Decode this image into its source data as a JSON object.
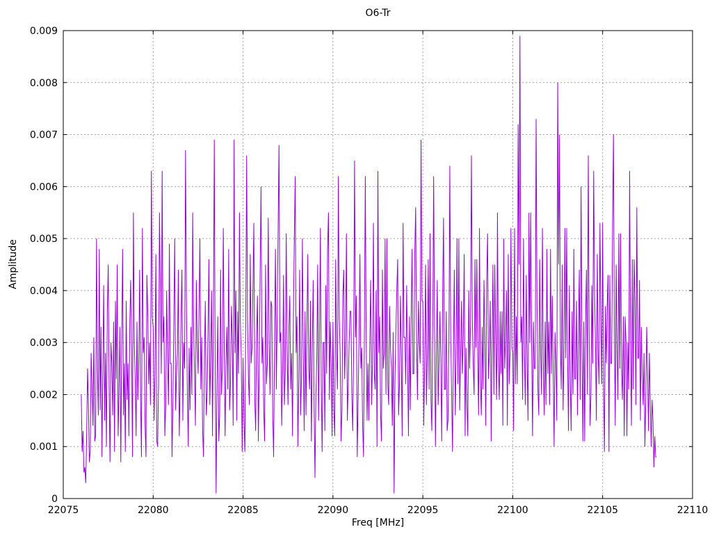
{
  "figure": {
    "background": "#ffffff"
  },
  "chart_data": {
    "type": "line",
    "title": "O6-Tr",
    "xlabel": "Freq [MHz]",
    "ylabel": "Amplitude",
    "xlim": [
      22075,
      22110
    ],
    "ylim": [
      0,
      0.009
    ],
    "x_ticks": [
      22075,
      22080,
      22085,
      22090,
      22095,
      22100,
      22105,
      22110
    ],
    "x_tick_labels": [
      "22075",
      "22080",
      "22085",
      "22090",
      "22095",
      "22100",
      "22105",
      "22110"
    ],
    "y_ticks": [
      0,
      0.001,
      0.002,
      0.003,
      0.004,
      0.005,
      0.006,
      0.007,
      0.008,
      0.009
    ],
    "y_tick_labels": [
      "0",
      "0.001",
      "0.002",
      "0.003",
      "0.004",
      "0.005",
      "0.006",
      "0.007",
      "0.008",
      "0.009"
    ],
    "grid": true,
    "legend": "none",
    "line_color": "#9400d3",
    "grid_color": "#9e9e9e",
    "axis_color": "#000000",
    "x_start": 22076.0,
    "x_step": 0.05,
    "value_scale": 0.0001,
    "samples": [
      20,
      9,
      13,
      5,
      6,
      3,
      12,
      25,
      18,
      7,
      9,
      28,
      22,
      14,
      31,
      11,
      12,
      50,
      25,
      16,
      48,
      17,
      33,
      8,
      24,
      41,
      15,
      28,
      10,
      36,
      45,
      21,
      7,
      30,
      26,
      16,
      34,
      9,
      38,
      23,
      45,
      12,
      21,
      33,
      7,
      30,
      48,
      16,
      26,
      9,
      38,
      19,
      26,
      12,
      34,
      42,
      28,
      8,
      55,
      30,
      23,
      12,
      34,
      19,
      27,
      44,
      19,
      8,
      52,
      28,
      31,
      14,
      8,
      43,
      36,
      22,
      30,
      18,
      63,
      35,
      33,
      15,
      24,
      47,
      11,
      10,
      22,
      55,
      40,
      24,
      63,
      30,
      35,
      12,
      18,
      40,
      27,
      18,
      49,
      26,
      26,
      8,
      19,
      34,
      50,
      17,
      24,
      28,
      44,
      12,
      21,
      35,
      44,
      15,
      30,
      25,
      67,
      38,
      21,
      10,
      29,
      17,
      33,
      20,
      55,
      33,
      24,
      14,
      42,
      30,
      24,
      36,
      50,
      21,
      31,
      13,
      8,
      27,
      38,
      16,
      20,
      32,
      46,
      18,
      27,
      40,
      12,
      35,
      69,
      25,
      1,
      22,
      35,
      11,
      16,
      44,
      20,
      25,
      52,
      30,
      12,
      26,
      33,
      21,
      48,
      17,
      22,
      37,
      30,
      14,
      69,
      28,
      40,
      15,
      36,
      24,
      55,
      34,
      27,
      9,
      27,
      15,
      9,
      35,
      66,
      34,
      23,
      18,
      47,
      26,
      29,
      41,
      53,
      19,
      13,
      31,
      39,
      11,
      25,
      44,
      60,
      26,
      31,
      17,
      11,
      45,
      22,
      26,
      54,
      30,
      20,
      38,
      37,
      16,
      8,
      29,
      48,
      21,
      35,
      52,
      68,
      30,
      32,
      14,
      24,
      43,
      18,
      25,
      51,
      29,
      18,
      33,
      39,
      21,
      28,
      12,
      35,
      50,
      62,
      28,
      35,
      10,
      23,
      44,
      16,
      23,
      50,
      28,
      13,
      36,
      16,
      33,
      47,
      25,
      21,
      38,
      11,
      29,
      42,
      18,
      4,
      20,
      27,
      45,
      15,
      31,
      52,
      22,
      9,
      30,
      30,
      13,
      41,
      24,
      48,
      55,
      19,
      34,
      26,
      12,
      34,
      17,
      12,
      46,
      28,
      21,
      62,
      35,
      28,
      11,
      17,
      39,
      44,
      23,
      31,
      51,
      15,
      22,
      30,
      36,
      36,
      20,
      13,
      29,
      65,
      31,
      39,
      8,
      19,
      31,
      47,
      25,
      29,
      14,
      8,
      33,
      62,
      30,
      15,
      26,
      15,
      30,
      42,
      18,
      26,
      53,
      24,
      21,
      40,
      10,
      63,
      28,
      35,
      16,
      11,
      44,
      25,
      28,
      50,
      20,
      50,
      22,
      18,
      37,
      29,
      25,
      14,
      32,
      1,
      23,
      32,
      40,
      46,
      16,
      22,
      39,
      27,
      12,
      53,
      31,
      31,
      22,
      41,
      27,
      12,
      35,
      17,
      35,
      48,
      24,
      24,
      47,
      56,
      30,
      19,
      38,
      30,
      26,
      69,
      38,
      38,
      14,
      26,
      45,
      18,
      28,
      46,
      21,
      51,
      19,
      13,
      33,
      62,
      33,
      10,
      27,
      42,
      18,
      26,
      36,
      26,
      11,
      39,
      54,
      21,
      21,
      36,
      13,
      15,
      30,
      64,
      31,
      20,
      9,
      28,
      44,
      16,
      27,
      50,
      22,
      50,
      17,
      28,
      38,
      24,
      31,
      47,
      12,
      29,
      18,
      12,
      40,
      25,
      33,
      66,
      35,
      26,
      20,
      46,
      29,
      46,
      28,
      16,
      52,
      23,
      16,
      33,
      21,
      42,
      30,
      14,
      42,
      51,
      23,
      28,
      38,
      11,
      30,
      45,
      20,
      45,
      30,
      19,
      55,
      26,
      19,
      36,
      24,
      36,
      14,
      50,
      25,
      31,
      40,
      14,
      47,
      22,
      28,
      52,
      29,
      28,
      13,
      52,
      22,
      35,
      22,
      72,
      45,
      89,
      30,
      35,
      19,
      50,
      28,
      18,
      43,
      26,
      15,
      55,
      30,
      55,
      30,
      12,
      34,
      25,
      25,
      73,
      38,
      21,
      16,
      46,
      28,
      20,
      52,
      26,
      16,
      34,
      18,
      48,
      24,
      34,
      18,
      48,
      24,
      39,
      24,
      10,
      32,
      26,
      15,
      80,
      45,
      70,
      30,
      21,
      45,
      17,
      29,
      52,
      27,
      52,
      27,
      13,
      41,
      22,
      13,
      36,
      20,
      48,
      23,
      23,
      38,
      16,
      31,
      44,
      19,
      60,
      29,
      11,
      34,
      11,
      34,
      44,
      20,
      66,
      32,
      14,
      20,
      41,
      26,
      63,
      40,
      30,
      15,
      47,
      28,
      22,
      53,
      35,
      22,
      53,
      22,
      9,
      37,
      26,
      37,
      43,
      9,
      43,
      26,
      26,
      52,
      70,
      34,
      14,
      45,
      29,
      19,
      51,
      25,
      51,
      25,
      19,
      35,
      12,
      35,
      30,
      12,
      30,
      21,
      63,
      30,
      14,
      46,
      21,
      46,
      38,
      18,
      56,
      27,
      27,
      42,
      15,
      33,
      24,
      18,
      28,
      10,
      19,
      33,
      24,
      13,
      28,
      18,
      10,
      19,
      15,
      6,
      12,
      8,
      8
    ]
  }
}
